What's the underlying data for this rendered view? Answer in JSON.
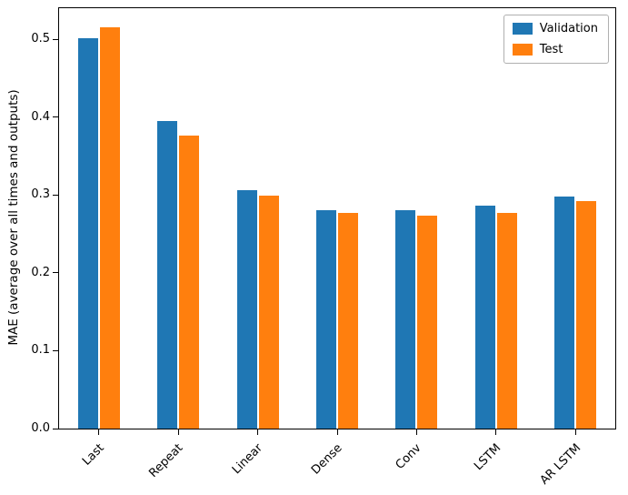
{
  "figure": {
    "background": "#ffffff",
    "spine_color": "#000000"
  },
  "chart_data": {
    "type": "bar",
    "title": "",
    "xlabel": "",
    "ylabel": "MAE (average over all times and outputs)",
    "categories": [
      "Last",
      "Repeat",
      "Linear",
      "Dense",
      "Conv",
      "LSTM",
      "AR LSTM"
    ],
    "series": [
      {
        "name": "Validation",
        "color": "#1f77b4",
        "values": [
          0.501,
          0.395,
          0.306,
          0.281,
          0.28,
          0.286,
          0.298
        ]
      },
      {
        "name": "Test",
        "color": "#ff7f0e",
        "values": [
          0.515,
          0.377,
          0.299,
          0.277,
          0.274,
          0.277,
          0.292
        ]
      }
    ],
    "ylim": [
      0,
      0.54
    ],
    "yticks": [
      0.0,
      0.1,
      0.2,
      0.3,
      0.4,
      0.5
    ],
    "ytick_labels": [
      "0.0",
      "0.1",
      "0.2",
      "0.3",
      "0.4",
      "0.5"
    ],
    "grid": false,
    "legend_position": "upper right",
    "xtick_rotation": 45
  }
}
